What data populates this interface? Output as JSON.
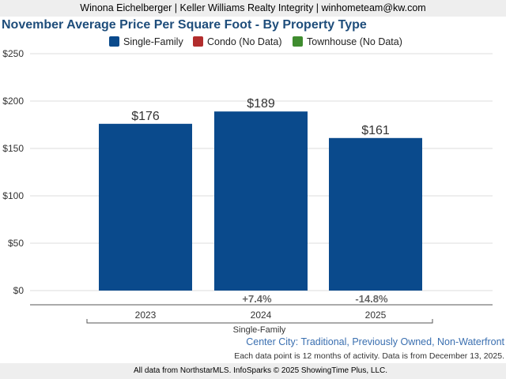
{
  "header": {
    "contact": "Winona Eichelberger | Keller Williams Realty Integrity | winhometeam@kw.com"
  },
  "chart_data": {
    "type": "bar",
    "title": "November Average Price Per Square Foot - By Property Type",
    "legend": [
      {
        "name": "Single-Family",
        "color": "#0a4a8c"
      },
      {
        "name": "Condo (No Data)",
        "color": "#b22d2d"
      },
      {
        "name": "Townhouse (No Data)",
        "color": "#3f8c2f"
      }
    ],
    "categories": [
      "2023",
      "2024",
      "2025"
    ],
    "group_label": "Single-Family",
    "series": [
      {
        "name": "Single-Family",
        "color": "#0a4a8c",
        "values": [
          176,
          189,
          161
        ],
        "labels": [
          "$176",
          "$189",
          "$161"
        ]
      }
    ],
    "changes": [
      "",
      "+7.4%",
      "-14.8%"
    ],
    "ylim": [
      0,
      250
    ],
    "yticks": [
      0,
      50,
      100,
      150,
      200,
      250
    ],
    "ytick_labels": [
      "$0",
      "$50",
      "$100",
      "$150",
      "$200",
      "$250"
    ],
    "grid": true,
    "xlabel": "",
    "ylabel": ""
  },
  "footer": {
    "subtitle": "Center City: Traditional, Previously Owned, Non-Waterfront",
    "note": "Each data point is 12 months of activity. Data is from December 13, 2025.",
    "source": "All data from NorthstarMLS. InfoSparks © 2025 ShowingTime Plus, LLC."
  }
}
